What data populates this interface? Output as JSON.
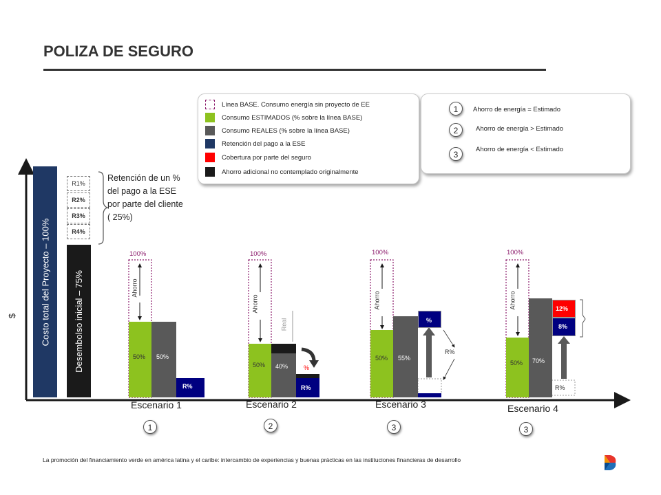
{
  "title": "POLIZA DE SEGURO",
  "legend": [
    {
      "label": "Línea BASE. Consumo energía sin proyecto de EE",
      "color": "#ffffff",
      "border": "#8b1a6b",
      "dashed": true
    },
    {
      "label": "Consumo ESTIMADOS (% sobre la línea BASE)",
      "color": "#8dc21f"
    },
    {
      "label": "Consumo REALES  (% sobre la línea BASE)",
      "color": "#595959"
    },
    {
      "label": "Retención del pago a la ESE",
      "color": "#1f3864"
    },
    {
      "label": "Cobertura por parte del seguro",
      "color": "#ff0000"
    },
    {
      "label": "Ahorro adicional no contemplado originalmente",
      "color": "#1a1a1a"
    }
  ],
  "conditions": [
    {
      "num": "1",
      "text": "Ahorro de energía = Estimado"
    },
    {
      "num": "2",
      "text": "Ahorro de energía > Estimado"
    },
    {
      "num": "3",
      "text": "Ahorro de energía < Estimado"
    }
  ],
  "axis": {
    "y_symbol": "$"
  },
  "left": {
    "total_label": "Costo total del Proyecto –   100%",
    "initial_label": "Desembolso inicial – 75%",
    "retention_items": [
      "R1%",
      "R2%",
      "R3%",
      "R4%"
    ],
    "retention_text": "Retención de un % del pago a la ESE por parte del cliente ( 25%)"
  },
  "labels": {
    "top_pct": "100%",
    "ahorro": "Ahorro",
    "real": "Real",
    "r_pct": "R%",
    "pct": "%"
  },
  "scenarios": [
    {
      "name": "Escenario 1",
      "num": "1",
      "estimated": "50%",
      "real": "50%",
      "retention": "R%"
    },
    {
      "name": "Escenario 2",
      "num": "2",
      "estimated": "50%",
      "real": "40%",
      "retention": "R%",
      "extra": "%"
    },
    {
      "name": "Escenario 3",
      "num": "3",
      "estimated": "50%",
      "real": "55%",
      "retention_box": "%",
      "side_label": "R%"
    },
    {
      "name": "Escenario 4",
      "num": "3",
      "estimated": "50%",
      "real": "70%",
      "insurance": "12%",
      "retention_box": "8%",
      "side_label": "R%"
    }
  ],
  "footer": "La promoción del financiamiento verde en américa latina y el caribe: intercambio de experiencias y buenas prácticas en las instituciones financieras de desarrollo",
  "colors": {
    "green": "#8dc21f",
    "gray": "#595959",
    "navy": "#1f3864",
    "darkblue": "#000080",
    "red": "#ff0000",
    "black": "#1a1a1a",
    "purple": "#8b1a6b"
  }
}
